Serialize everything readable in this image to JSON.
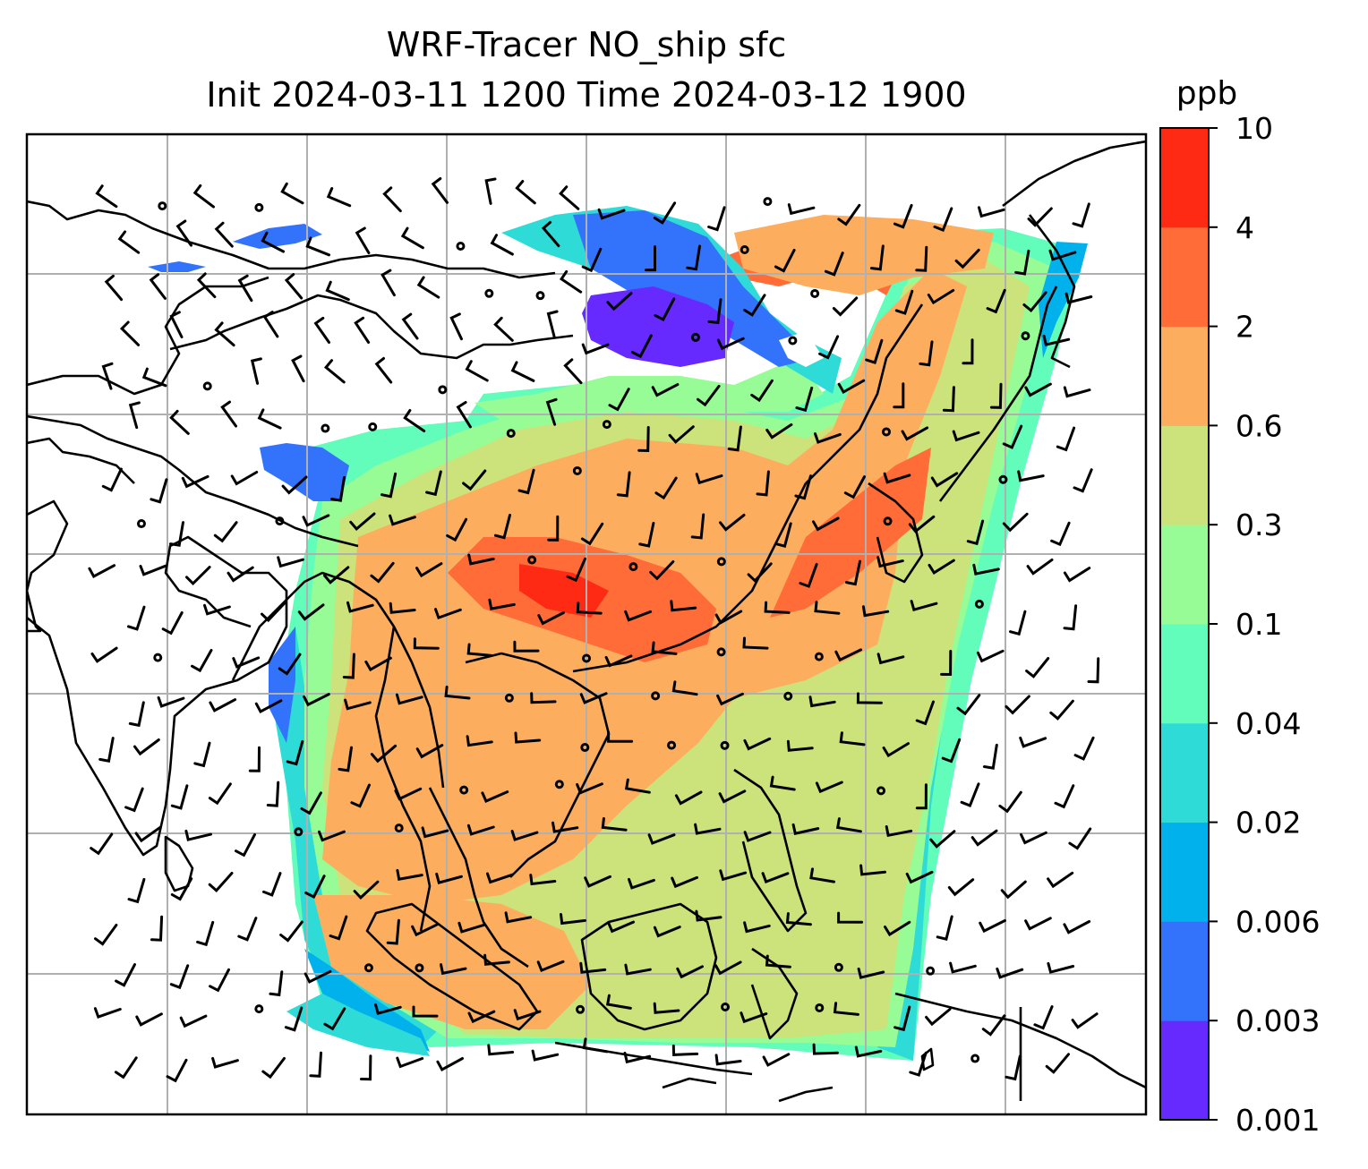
{
  "title": {
    "line1": "WRF-Tracer NO_ship sfc",
    "line2": "Init 2024-03-11 1200 Time 2024-03-12 1900"
  },
  "colorbar": {
    "unit_label": "ppb",
    "ticks": [
      "0.001",
      "0.003",
      "0.006",
      "0.02",
      "0.04",
      "0.1",
      "0.3",
      "0.6",
      "2",
      "4",
      "10"
    ],
    "colors": [
      "#6629fe",
      "#3373fb",
      "#00b1ec",
      "#2fdbd6",
      "#62fcbb",
      "#97fc95",
      "#cce27a",
      "#fdad5e",
      "#ff6c38",
      "#ff2a14"
    ]
  },
  "map": {
    "gridline_color": "#b0b0b0",
    "coastline_color": "#000000",
    "barb_color": "#000000",
    "no_data_fill": "#ffffff"
  }
}
